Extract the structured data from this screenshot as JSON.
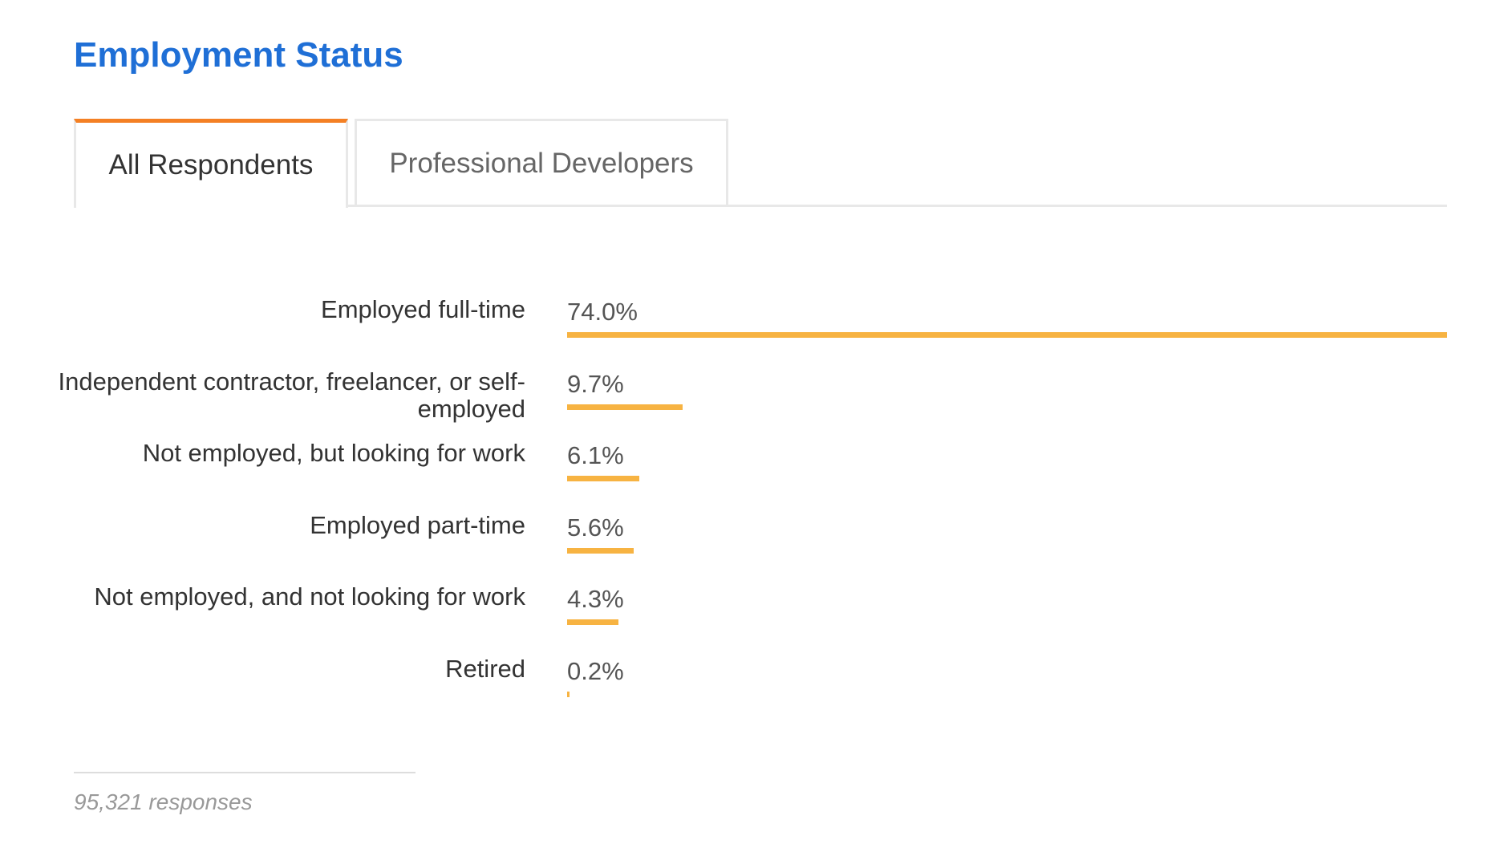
{
  "chart_data": {
    "type": "bar",
    "title": "Employment Status",
    "tabs": [
      "All Respondents",
      "Professional Developers"
    ],
    "categories": [
      "Employed full-time",
      "Independent contractor, freelancer, or self-employed",
      "Not employed, but looking for work",
      "Employed part-time",
      "Not employed, and not looking for work",
      "Retired"
    ],
    "values": [
      74.0,
      9.7,
      6.1,
      5.6,
      4.3,
      0.2
    ],
    "value_labels": [
      "74.0%",
      "9.7%",
      "6.1%",
      "5.6%",
      "4.3%",
      "0.2%"
    ],
    "color": "#f7b342",
    "note": "95,321 responses"
  }
}
